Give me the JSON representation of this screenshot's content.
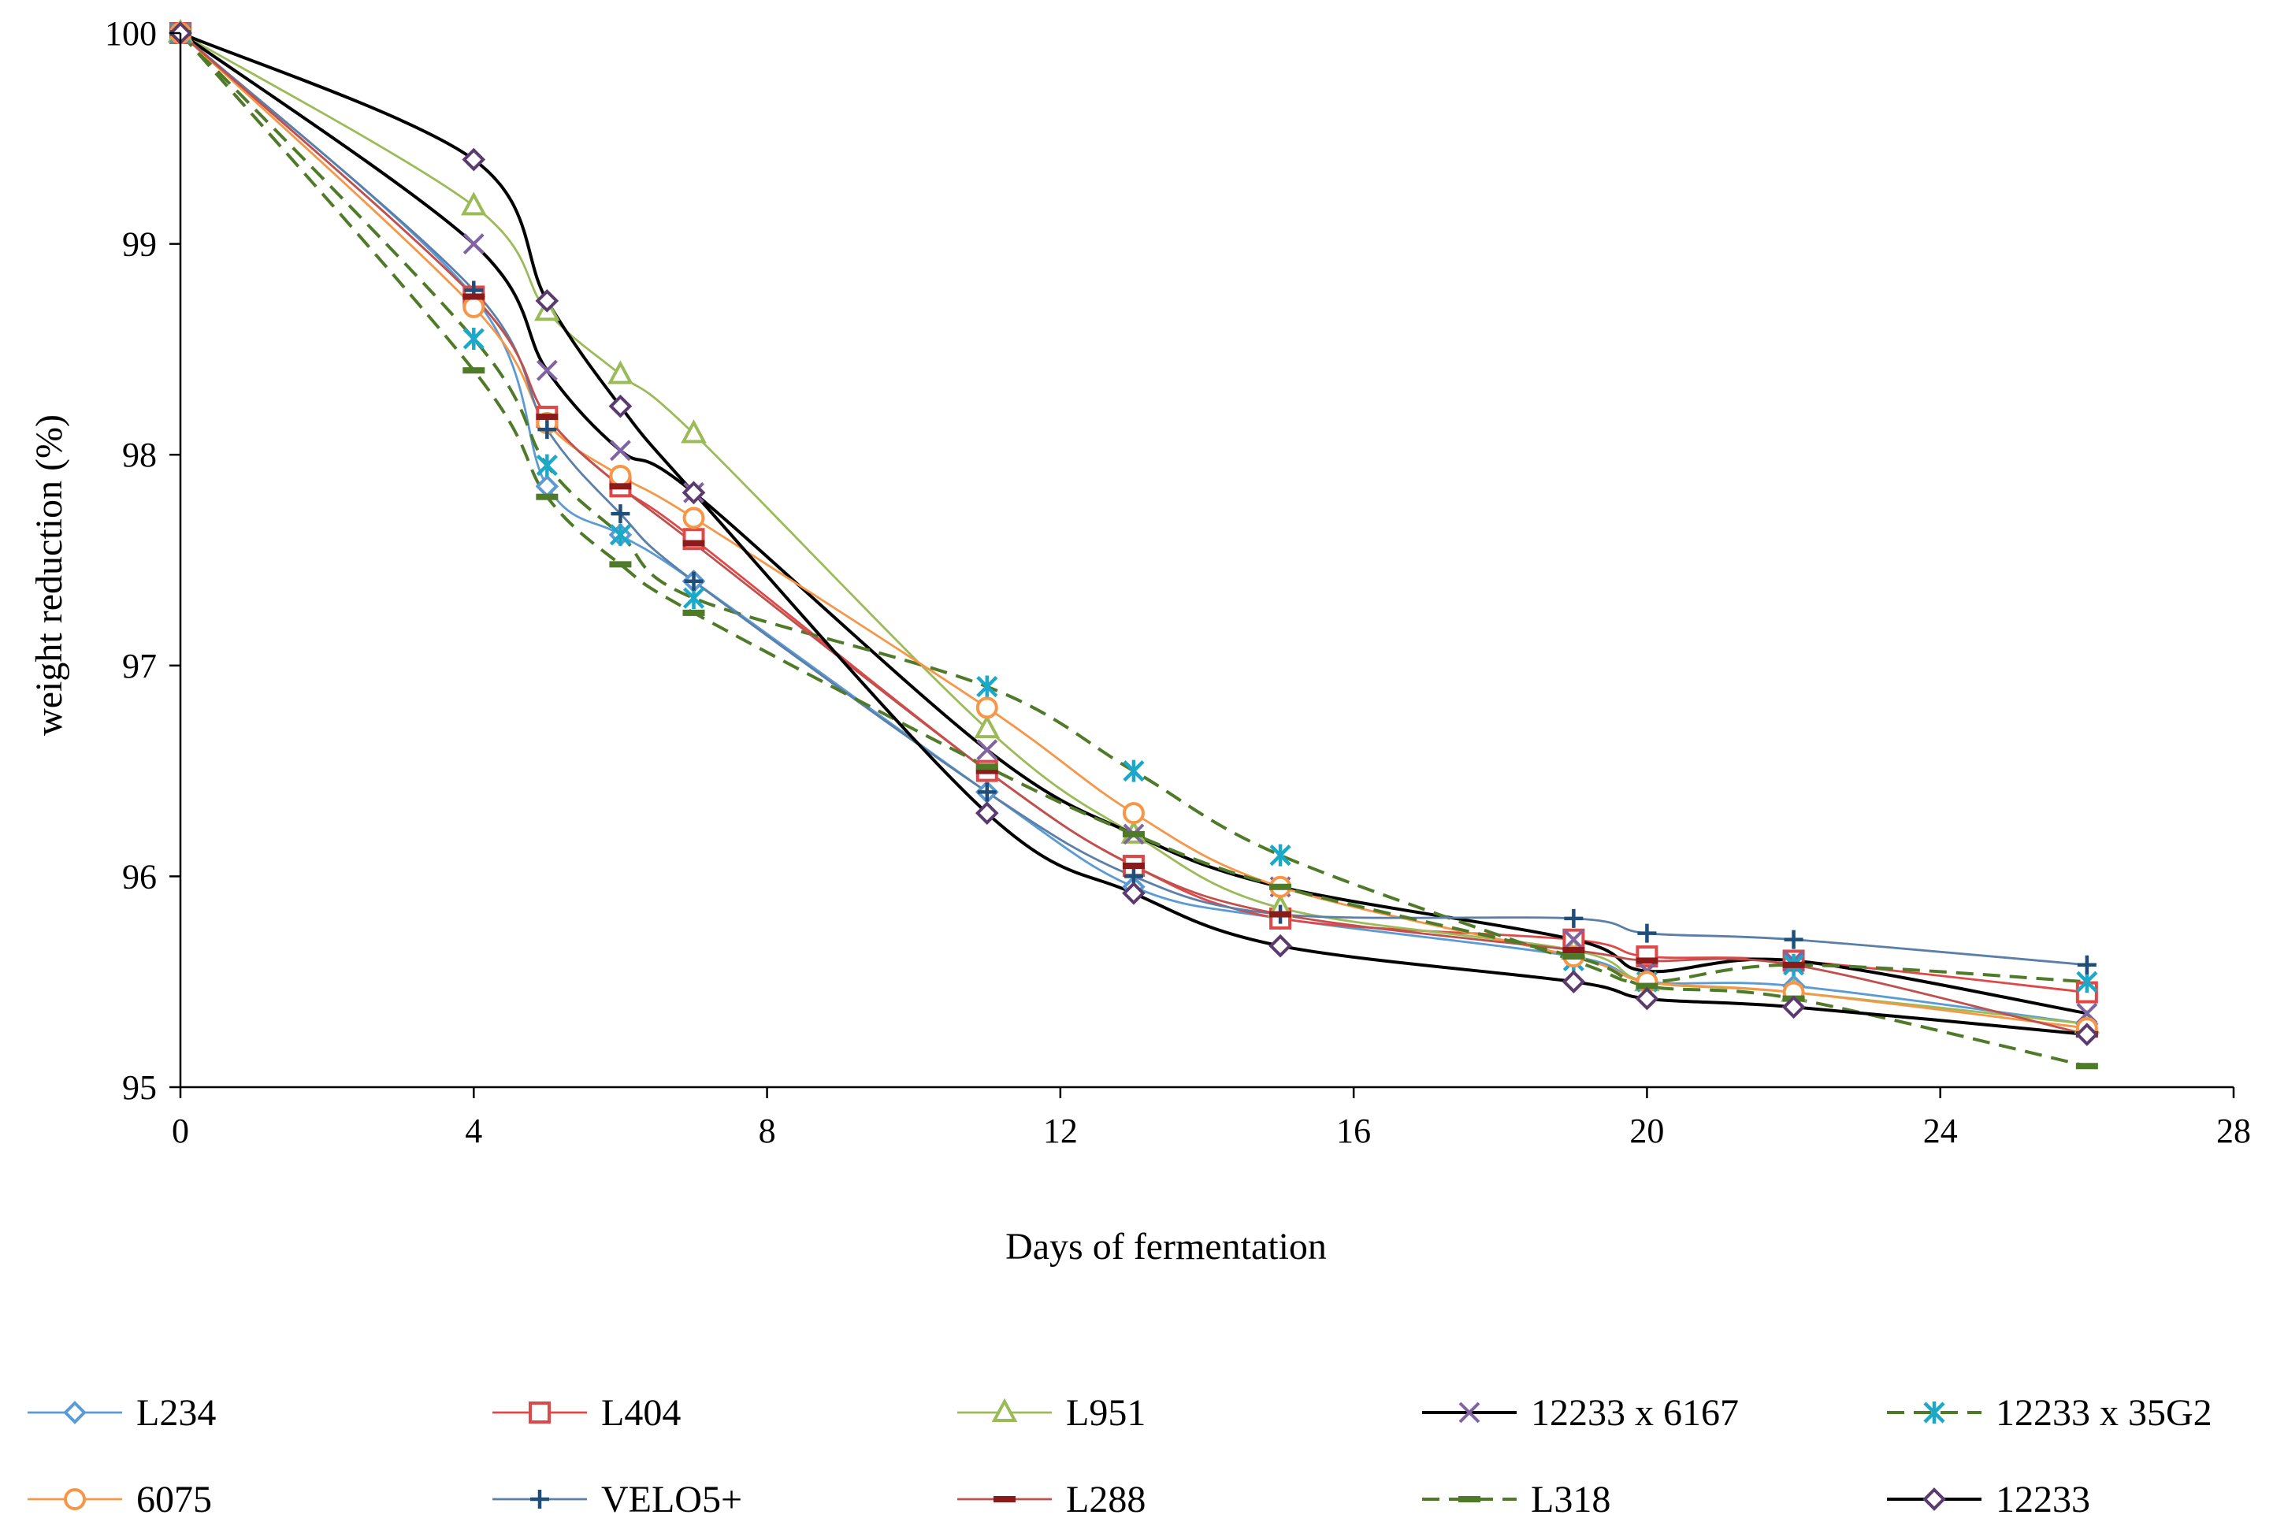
{
  "chart_data": {
    "type": "line",
    "title": "",
    "xlabel": "Days of fermentation",
    "ylabel": "weight reduction (%)",
    "xlim": [
      0,
      28
    ],
    "ylim": [
      95,
      100
    ],
    "xticks": [
      0,
      4,
      8,
      12,
      16,
      20,
      24,
      28
    ],
    "yticks": [
      95,
      96,
      97,
      98,
      99,
      100
    ],
    "grid": false,
    "legend_position": "bottom",
    "x": [
      0,
      4,
      5,
      6,
      7,
      11,
      13,
      15,
      19,
      20,
      22,
      26
    ],
    "series": [
      {
        "name": "L234",
        "color": "#5B9BD5",
        "marker": "diamond",
        "dashed": false,
        "stroke_weight": "thin",
        "values": [
          100,
          98.75,
          97.85,
          97.62,
          97.4,
          96.4,
          95.95,
          95.8,
          95.62,
          95.5,
          95.48,
          95.3
        ]
      },
      {
        "name": "L404",
        "color": "#E04848",
        "marker": "square",
        "dashed": false,
        "stroke_weight": "thin",
        "values": [
          100,
          98.75,
          98.18,
          97.85,
          97.6,
          96.5,
          96.05,
          95.8,
          95.7,
          95.62,
          95.6,
          95.45
        ]
      },
      {
        "name": "L951",
        "color": "#9BBB59",
        "marker": "triangle",
        "dashed": false,
        "stroke_weight": "thin",
        "values": [
          100,
          99.18,
          98.68,
          98.38,
          98.1,
          96.7,
          96.2,
          95.85,
          95.65,
          95.5,
          95.45,
          95.3
        ]
      },
      {
        "name": "12233 x 6167",
        "color": "#000000",
        "marker": "x",
        "dashed": false,
        "stroke_weight": "thick",
        "marker_color": "#8064A2",
        "values": [
          100,
          99.0,
          98.4,
          98.02,
          97.82,
          96.6,
          96.2,
          95.95,
          95.7,
          95.55,
          95.6,
          95.35
        ]
      },
      {
        "name": "12233 x 35G2",
        "color": "#4F7A28",
        "marker": "asterisk",
        "dashed": true,
        "stroke_weight": "thick",
        "marker_color": "#1CA9C9",
        "values": [
          100,
          98.55,
          97.95,
          97.62,
          97.32,
          96.9,
          96.5,
          96.1,
          95.6,
          95.5,
          95.58,
          95.5
        ]
      },
      {
        "name": "6075",
        "color": "#F79646",
        "marker": "circle",
        "dashed": false,
        "stroke_weight": "thin",
        "values": [
          100,
          98.7,
          98.15,
          97.9,
          97.7,
          96.8,
          96.3,
          95.95,
          95.62,
          95.5,
          95.45,
          95.28
        ]
      },
      {
        "name": "VELO5+",
        "color": "#5A7FA8",
        "marker": "plus",
        "dashed": false,
        "stroke_weight": "thin",
        "marker_color": "#1F4E79",
        "values": [
          100,
          98.78,
          98.12,
          97.72,
          97.4,
          96.4,
          96.0,
          95.82,
          95.8,
          95.73,
          95.7,
          95.58
        ]
      },
      {
        "name": "L288",
        "color": "#C0504D",
        "marker": "dash",
        "dashed": false,
        "stroke_weight": "thin",
        "marker_color": "#8B1A1A",
        "values": [
          100,
          98.75,
          98.18,
          97.85,
          97.58,
          96.5,
          96.05,
          95.82,
          95.65,
          95.6,
          95.58,
          95.25
        ]
      },
      {
        "name": "L318",
        "color": "#4F7A28",
        "marker": "dash",
        "dashed": true,
        "stroke_weight": "thick",
        "values": [
          100,
          98.4,
          97.8,
          97.48,
          97.25,
          96.52,
          96.2,
          95.95,
          95.62,
          95.48,
          95.42,
          95.1
        ]
      },
      {
        "name": "12233",
        "color": "#000000",
        "marker": "diamond",
        "dashed": false,
        "stroke_weight": "thick",
        "marker_color": "#5B3A6E",
        "values": [
          100,
          99.4,
          98.73,
          98.23,
          97.82,
          96.3,
          95.92,
          95.67,
          95.5,
          95.42,
          95.38,
          95.25
        ]
      }
    ]
  }
}
